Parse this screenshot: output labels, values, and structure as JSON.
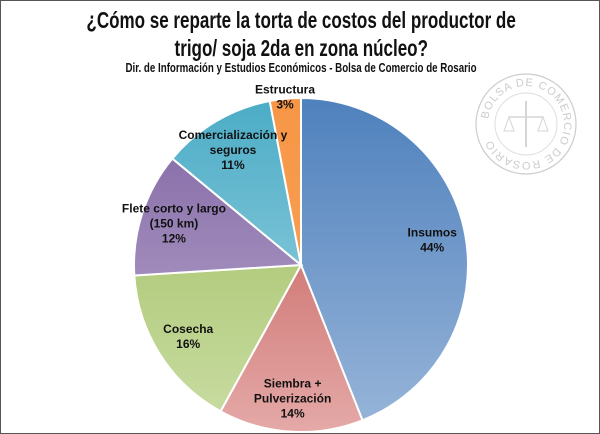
{
  "chart_data": {
    "type": "pie",
    "title_lines": [
      "¿Cómo se reparte la torta de costos del productor de",
      "trigo/ soja 2da en zona núcleo?"
    ],
    "subtitle": "Dir. de Información y Estudios Económicos - Bolsa de Comercio de Rosario",
    "start": "12 o'clock, clockwise",
    "slices": [
      {
        "name": "Insumos",
        "label_lines": [
          "Insumos"
        ],
        "value": 44,
        "value_label": "44%",
        "color": "#4f81bd",
        "color_light": "#98b5d9"
      },
      {
        "name": "Siembra + Pulverización",
        "label_lines": [
          "Siembra +",
          "Pulverización"
        ],
        "value": 14,
        "value_label": "14%",
        "color": "#c0504d",
        "color_light": "#e4a9a7"
      },
      {
        "name": "Cosecha",
        "label_lines": [
          "Cosecha"
        ],
        "value": 16,
        "value_label": "16%",
        "color": "#9bbb59",
        "color_light": "#cadda4"
      },
      {
        "name": "Flete corto y largo (150 km)",
        "label_lines": [
          "Flete corto  y largo",
          "(150 km)"
        ],
        "value": 12,
        "value_label": "12%",
        "color": "#8064a2",
        "color_light": "#bcaed2"
      },
      {
        "name": "Comercialización y seguros",
        "label_lines": [
          "Comercialización  y",
          "seguros"
        ],
        "value": 11,
        "value_label": "11%",
        "color": "#4bacc6",
        "color_light": "#a8d8e5"
      },
      {
        "name": "Estructura",
        "label_lines": [
          "Estructura"
        ],
        "value": 3,
        "value_label": "3%",
        "color": "#f79646",
        "color_light": "#f7a55e"
      }
    ]
  },
  "watermark": "BOLSA DE COMERCIO DE ROSARIO"
}
